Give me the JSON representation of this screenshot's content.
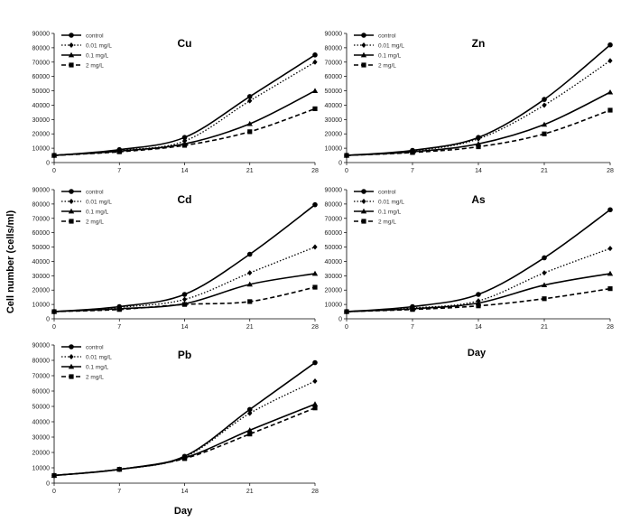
{
  "figure": {
    "ylabel": "Cell number (cells/ml)",
    "xlabel": "Day"
  },
  "chart_data": [
    {
      "type": "line",
      "title": "Cu",
      "x": [
        0,
        7,
        14,
        21,
        28
      ],
      "xticks": [
        "0",
        "7",
        "14",
        "21",
        "28"
      ],
      "ylim": [
        0,
        90000
      ],
      "yticks": [
        "0",
        "10000",
        "20000",
        "30000",
        "40000",
        "50000",
        "60000",
        "70000",
        "80000",
        "90000"
      ],
      "legend": "top-left",
      "series": [
        {
          "name": "control",
          "values": [
            5000,
            9000,
            17500,
            46000,
            75000
          ]
        },
        {
          "name": "0.01 mg/L",
          "values": [
            5000,
            8500,
            15000,
            43000,
            70000
          ]
        },
        {
          "name": "0.1 mg/L",
          "values": [
            5000,
            8000,
            13000,
            27000,
            50000
          ]
        },
        {
          "name": "2 mg/L",
          "values": [
            5000,
            7500,
            12000,
            21500,
            37500
          ]
        }
      ]
    },
    {
      "type": "line",
      "title": "Zn",
      "x": [
        0,
        7,
        14,
        21,
        28
      ],
      "xticks": [
        "0",
        "7",
        "14",
        "21",
        "28"
      ],
      "ylim": [
        0,
        90000
      ],
      "yticks": [
        "0",
        "10000",
        "20000",
        "30000",
        "40000",
        "50000",
        "60000",
        "70000",
        "80000",
        "90000"
      ],
      "legend": "top-left",
      "series": [
        {
          "name": "control",
          "values": [
            5000,
            8500,
            17500,
            44000,
            82000
          ]
        },
        {
          "name": "0.01 mg/L",
          "values": [
            5000,
            8000,
            16500,
            40000,
            71000
          ]
        },
        {
          "name": "0.1 mg/L",
          "values": [
            5000,
            7500,
            13000,
            26500,
            49000
          ]
        },
        {
          "name": "2 mg/L",
          "values": [
            5000,
            7000,
            11000,
            20000,
            36500
          ]
        }
      ]
    },
    {
      "type": "line",
      "title": "Cd",
      "x": [
        0,
        7,
        14,
        21,
        28
      ],
      "xticks": [
        "0",
        "7",
        "14",
        "21",
        "28"
      ],
      "ylim": [
        0,
        90000
      ],
      "yticks": [
        "0",
        "10000",
        "20000",
        "30000",
        "40000",
        "50000",
        "60000",
        "70000",
        "80000",
        "90000"
      ],
      "legend": "top-left",
      "series": [
        {
          "name": "control",
          "values": [
            5000,
            8500,
            17000,
            45000,
            79500
          ]
        },
        {
          "name": "0.01 mg/L",
          "values": [
            5000,
            8000,
            13500,
            32000,
            50000
          ]
        },
        {
          "name": "0.1 mg/L",
          "values": [
            5000,
            7000,
            10500,
            24000,
            31500
          ]
        },
        {
          "name": "2 mg/L",
          "values": [
            5000,
            6500,
            10000,
            12000,
            22000
          ]
        }
      ]
    },
    {
      "type": "line",
      "title": "As",
      "x": [
        0,
        7,
        14,
        21,
        28
      ],
      "xticks": [
        "0",
        "7",
        "14",
        "21",
        "28"
      ],
      "ylim": [
        0,
        90000
      ],
      "yticks": [
        "0",
        "10000",
        "20000",
        "30000",
        "40000",
        "50000",
        "60000",
        "70000",
        "80000",
        "90000"
      ],
      "legend": "top-left",
      "series": [
        {
          "name": "control",
          "values": [
            5000,
            8500,
            17000,
            42500,
            76000
          ]
        },
        {
          "name": "0.01 mg/L",
          "values": [
            5000,
            7500,
            12500,
            32000,
            49000
          ]
        },
        {
          "name": "0.1 mg/L",
          "values": [
            5000,
            7000,
            11000,
            23500,
            31500
          ]
        },
        {
          "name": "2 mg/L",
          "values": [
            5000,
            6500,
            9000,
            14000,
            21000
          ]
        }
      ]
    },
    {
      "type": "line",
      "title": "Pb",
      "x": [
        0,
        7,
        14,
        21,
        28
      ],
      "xticks": [
        "0",
        "7",
        "14",
        "21",
        "28"
      ],
      "ylim": [
        0,
        90000
      ],
      "yticks": [
        "0",
        "10000",
        "20000",
        "30000",
        "40000",
        "50000",
        "60000",
        "70000",
        "80000",
        "90000"
      ],
      "legend": "top-left",
      "series": [
        {
          "name": "control",
          "values": [
            5000,
            9000,
            17500,
            48000,
            78500
          ]
        },
        {
          "name": "0.01 mg/L",
          "values": [
            5000,
            9000,
            17000,
            45500,
            66500
          ]
        },
        {
          "name": "0.1 mg/L",
          "values": [
            5000,
            9000,
            16500,
            34500,
            51500
          ]
        },
        {
          "name": "2 mg/L",
          "values": [
            5000,
            9000,
            16000,
            32000,
            49000
          ]
        }
      ]
    }
  ]
}
